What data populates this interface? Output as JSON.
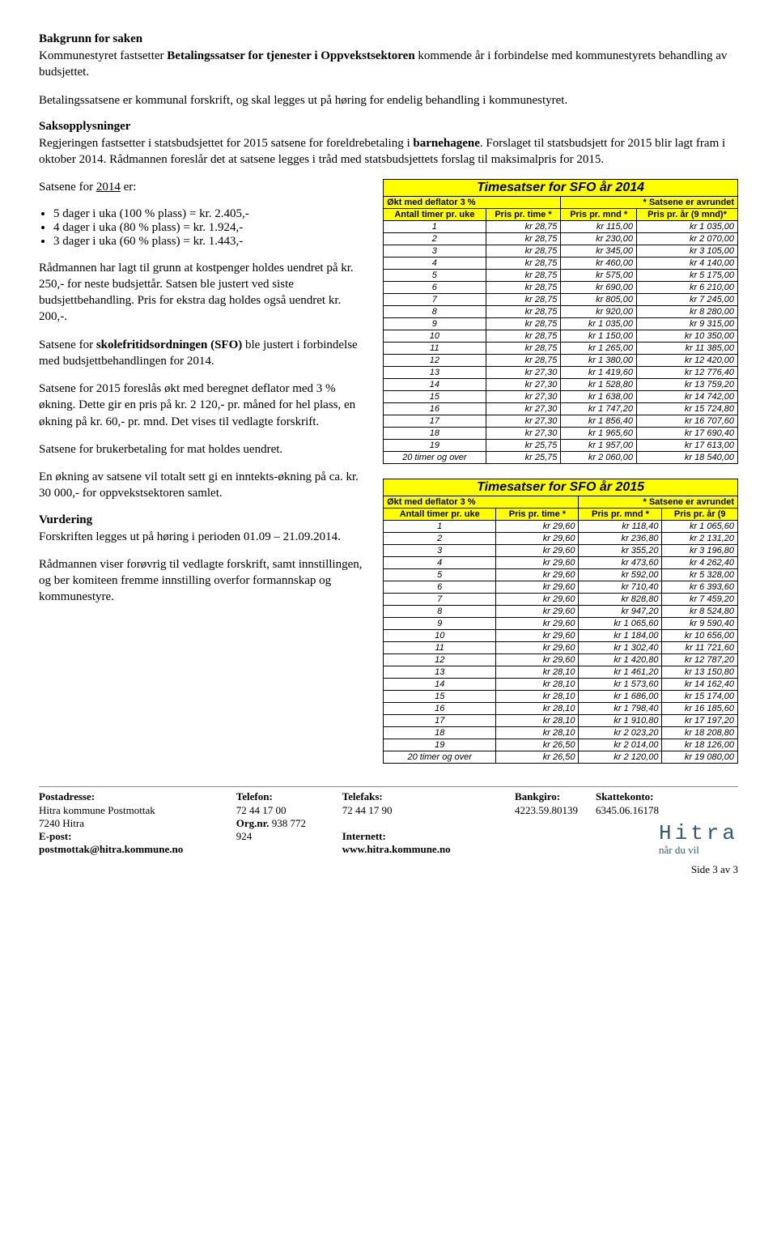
{
  "headings": {
    "bakgrunn": "Bakgrunn for saken",
    "saksopplysninger": "Saksopplysninger",
    "vurdering": "Vurdering"
  },
  "intro": {
    "p1a": "Kommunestyret fastsetter ",
    "p1b": "Betalingssatser for tjenester i Oppvekstsektoren",
    "p1c": " kommende år i forbindelse med kommunestyrets behandling av budsjettet.",
    "p2": "Betalingssatsene er kommunal forskrift, og skal legges ut på høring for endelig behandling i kommunestyret."
  },
  "saks": {
    "p1a": "Regjeringen fastsetter i statsbudsjettet for 2015 satsene for foreldrebetaling i ",
    "p1b": "barnehagene",
    "p1c": ". Forslaget til statsbudsjett for 2015 blir lagt fram i oktober 2014. Rådmannen foreslår det at satsene legges i tråd med statsbudsjettets forslag til maksimalpris for 2015."
  },
  "left": {
    "satsene_line": "Satsene for 2014 er:",
    "bullets": [
      "5 dager i uka (100 % plass) =    kr.  2.405,-",
      "4 dager i uka (80 % plass) =      kr.  1.924,-",
      "3 dager i uka (60 % plass) =      kr.  1.443,-"
    ],
    "p1": "Rådmannen har lagt til grunn at kostpenger holdes uendret på kr. 250,- for neste budsjettår. Satsen ble justert ved siste budsjettbehandling. Pris for ekstra dag holdes også uendret kr. 200,-.",
    "p2a": "Satsene for ",
    "p2b": "skolefritidsordningen (SFO)",
    "p2c": " ble justert i forbindelse med budsjettbehandlingen for 2014.",
    "p3": "Satsene for 2015 foreslås økt med beregnet deflator med 3 % økning. Dette gir en pris på kr. 2 120,- pr. måned for hel plass, en økning på kr. 60,- pr. mnd. Det vises til vedlagte forskrift.",
    "p4": "Satsene for brukerbetaling for mat holdes uendret.",
    "p5": "En økning av satsene vil totalt sett gi en inntekts-økning på ca. kr. 30 000,- for oppvekstsektoren samlet.",
    "p6": "Forskriften legges ut på høring i perioden 01.09 – 21.09.2014.",
    "p7": "Rådmannen viser forøvrig til vedlagte forskrift, samt innstillingen, og ber komiteen fremme innstilling overfor formannskap og kommunestyre."
  },
  "table2014": {
    "title": "Timesatser for SFO år 2014",
    "sub_left": "Økt med deflator 3 %",
    "sub_right": "* Satsene er avrundet",
    "headers": [
      "Antall timer pr. uke",
      "Pris pr. time *",
      "Pris pr. mnd *",
      "Pris pr. år (9 mnd)*"
    ],
    "rows": [
      [
        "1",
        "kr 28,75",
        "kr 115,00",
        "kr 1 035,00"
      ],
      [
        "2",
        "kr 28,75",
        "kr 230,00",
        "kr 2 070,00"
      ],
      [
        "3",
        "kr 28,75",
        "kr 345,00",
        "kr 3 105,00"
      ],
      [
        "4",
        "kr 28,75",
        "kr 460,00",
        "kr 4 140,00"
      ],
      [
        "5",
        "kr 28,75",
        "kr 575,00",
        "kr 5 175,00"
      ],
      [
        "6",
        "kr 28,75",
        "kr 690,00",
        "kr 6 210,00"
      ],
      [
        "7",
        "kr 28,75",
        "kr 805,00",
        "kr 7 245,00"
      ],
      [
        "8",
        "kr 28,75",
        "kr 920,00",
        "kr 8 280,00"
      ],
      [
        "9",
        "kr 28,75",
        "kr 1 035,00",
        "kr 9 315,00"
      ],
      [
        "10",
        "kr 28,75",
        "kr 1 150,00",
        "kr 10 350,00"
      ],
      [
        "11",
        "kr 28,75",
        "kr 1 265,00",
        "kr 11 385,00"
      ],
      [
        "12",
        "kr 28,75",
        "kr 1 380,00",
        "kr 12 420,00"
      ],
      [
        "13",
        "kr 27,30",
        "kr 1 419,60",
        "kr 12 776,40"
      ],
      [
        "14",
        "kr 27,30",
        "kr 1 528,80",
        "kr 13 759,20"
      ],
      [
        "15",
        "kr 27,30",
        "kr 1 638,00",
        "kr 14 742,00"
      ],
      [
        "16",
        "kr 27,30",
        "kr 1 747,20",
        "kr 15 724,80"
      ],
      [
        "17",
        "kr 27,30",
        "kr 1 856,40",
        "kr 16 707,60"
      ],
      [
        "18",
        "kr 27,30",
        "kr 1 965,60",
        "kr 17 690,40"
      ],
      [
        "19",
        "kr 25,75",
        "kr 1 957,00",
        "kr 17 613,00"
      ],
      [
        "20 timer og over",
        "kr 25,75",
        "kr 2 060,00",
        "kr 18 540,00"
      ]
    ]
  },
  "table2015": {
    "title": "Timesatser for SFO år 2015",
    "sub_left": "Økt med deflator 3 %",
    "sub_right": "* Satsene er avrundet",
    "headers": [
      "Antall timer pr. uke",
      "Pris pr. time *",
      "Pris pr. mnd *",
      "Pris pr. år (9"
    ],
    "rows": [
      [
        "1",
        "kr 29,60",
        "kr 118,40",
        "kr 1 065,60"
      ],
      [
        "2",
        "kr 29,60",
        "kr 236,80",
        "kr 2 131,20"
      ],
      [
        "3",
        "kr 29,60",
        "kr 355,20",
        "kr 3 196,80"
      ],
      [
        "4",
        "kr 29,60",
        "kr 473,60",
        "kr 4 262,40"
      ],
      [
        "5",
        "kr 29,60",
        "kr 592,00",
        "kr 5 328,00"
      ],
      [
        "6",
        "kr 29,60",
        "kr 710,40",
        "kr 6 393,60"
      ],
      [
        "7",
        "kr 29,60",
        "kr 828,80",
        "kr 7 459,20"
      ],
      [
        "8",
        "kr 29,60",
        "kr 947,20",
        "kr 8 524,80"
      ],
      [
        "9",
        "kr 29,60",
        "kr 1 065,60",
        "kr 9 590,40"
      ],
      [
        "10",
        "kr 29,60",
        "kr 1 184,00",
        "kr 10 656,00"
      ],
      [
        "11",
        "kr 29,60",
        "kr 1 302,40",
        "kr 11 721,60"
      ],
      [
        "12",
        "kr 29,60",
        "kr 1 420,80",
        "kr 12 787,20"
      ],
      [
        "13",
        "kr 28,10",
        "kr 1 461,20",
        "kr 13 150,80"
      ],
      [
        "14",
        "kr 28,10",
        "kr 1 573,60",
        "kr 14 162,40"
      ],
      [
        "15",
        "kr 28,10",
        "kr 1 686,00",
        "kr 15 174,00"
      ],
      [
        "16",
        "kr 28,10",
        "kr 1 798,40",
        "kr 16 185,60"
      ],
      [
        "17",
        "kr 28,10",
        "kr 1 910,80",
        "kr 17 197,20"
      ],
      [
        "18",
        "kr 28,10",
        "kr 2 023,20",
        "kr 18 208,80"
      ],
      [
        "19",
        "kr 26,50",
        "kr 2 014,00",
        "kr 18 126,00"
      ],
      [
        "20 timer og over",
        "kr 26,50",
        "kr 2 120,00",
        "kr 19 080,00"
      ]
    ]
  },
  "footer": {
    "postadresse_h": "Postadresse:",
    "postadresse_1": "Hitra kommune  Postmottak",
    "postadresse_2": "7240 Hitra",
    "telefon_h": "Telefon:",
    "telefon_1": "72 44 17 00",
    "org_h": "Org.nr.",
    "org_v": "938 772 924",
    "telefaks_h": "Telefaks:",
    "telefaks_1": "72 44 17 90",
    "bankgiro_h": "Bankgiro:",
    "bankgiro_1": "4223.59.80139",
    "skattekonto_h": "Skattekonto:",
    "skattekonto_1": "6345.06.16178",
    "epost_h": "E-post: postmottak@hitra.kommune.no",
    "internett_h": "Internett: www.hitra.kommune.no",
    "logo": "Hitra",
    "tagline": "når du vil",
    "page": "Side 3 av 3"
  }
}
